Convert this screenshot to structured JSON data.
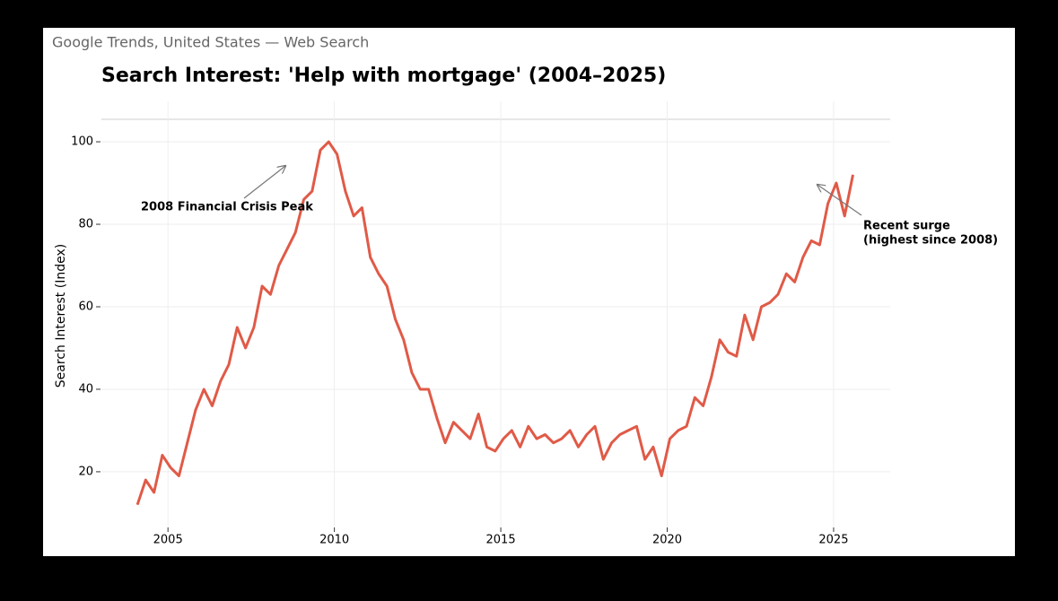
{
  "chart_data": {
    "type": "line",
    "subtitle": "Google Trends, United States — Web Search",
    "title": "Search Interest: 'Help with mortgage' (2004–2025)",
    "y_label": "Search Interest (Index)",
    "color": "#e05a47",
    "grid": true,
    "xlim": [
      2003.0,
      2026.7
    ],
    "ylim": [
      6.5,
      109.8
    ],
    "xticks": [
      2005,
      2010,
      2015,
      2020,
      2025
    ],
    "yticks": [
      20,
      40,
      60,
      80,
      100
    ],
    "x": [
      2004.08,
      2004.33,
      2004.58,
      2004.83,
      2005.08,
      2005.33,
      2005.58,
      2005.83,
      2006.08,
      2006.33,
      2006.58,
      2006.83,
      2007.08,
      2007.33,
      2007.58,
      2007.83,
      2008.08,
      2008.33,
      2008.58,
      2008.83,
      2009.08,
      2009.33,
      2009.58,
      2009.83,
      2010.08,
      2010.33,
      2010.58,
      2010.83,
      2011.08,
      2011.33,
      2011.58,
      2011.83,
      2012.08,
      2012.33,
      2012.58,
      2012.83,
      2013.08,
      2013.33,
      2013.58,
      2013.83,
      2014.08,
      2014.33,
      2014.58,
      2014.83,
      2015.08,
      2015.33,
      2015.58,
      2015.83,
      2016.08,
      2016.33,
      2016.58,
      2016.83,
      2017.08,
      2017.33,
      2017.58,
      2017.83,
      2018.08,
      2018.33,
      2018.58,
      2018.83,
      2019.08,
      2019.33,
      2019.58,
      2019.83,
      2020.08,
      2020.33,
      2020.58,
      2020.83,
      2021.08,
      2021.33,
      2021.58,
      2021.83,
      2022.08,
      2022.33,
      2022.58,
      2022.83,
      2023.08,
      2023.33,
      2023.58,
      2023.83,
      2024.08,
      2024.33,
      2024.58,
      2024.83,
      2025.08,
      2025.33,
      2025.58
    ],
    "values": [
      12,
      18,
      15,
      24,
      21,
      19,
      27,
      35,
      40,
      36,
      42,
      46,
      55,
      50,
      55,
      65,
      63,
      70,
      74,
      78,
      86,
      88,
      98,
      100,
      97,
      88,
      82,
      84,
      72,
      68,
      65,
      57,
      52,
      44,
      40,
      40,
      33,
      27,
      32,
      30,
      28,
      34,
      26,
      25,
      28,
      30,
      26,
      31,
      28,
      29,
      27,
      28,
      30,
      26,
      29,
      31,
      23,
      27,
      29,
      30,
      31,
      23,
      26,
      19,
      28,
      30,
      31,
      38,
      36,
      43,
      52,
      49,
      48,
      58,
      52,
      60,
      61,
      63,
      68,
      66,
      72,
      76,
      75,
      85,
      90,
      82,
      92
    ],
    "annotations": [
      {
        "text": "2008 Financial Crisis Peak"
      },
      {
        "text": [
          "Recent surge",
          "(highest since 2008)"
        ]
      }
    ]
  }
}
